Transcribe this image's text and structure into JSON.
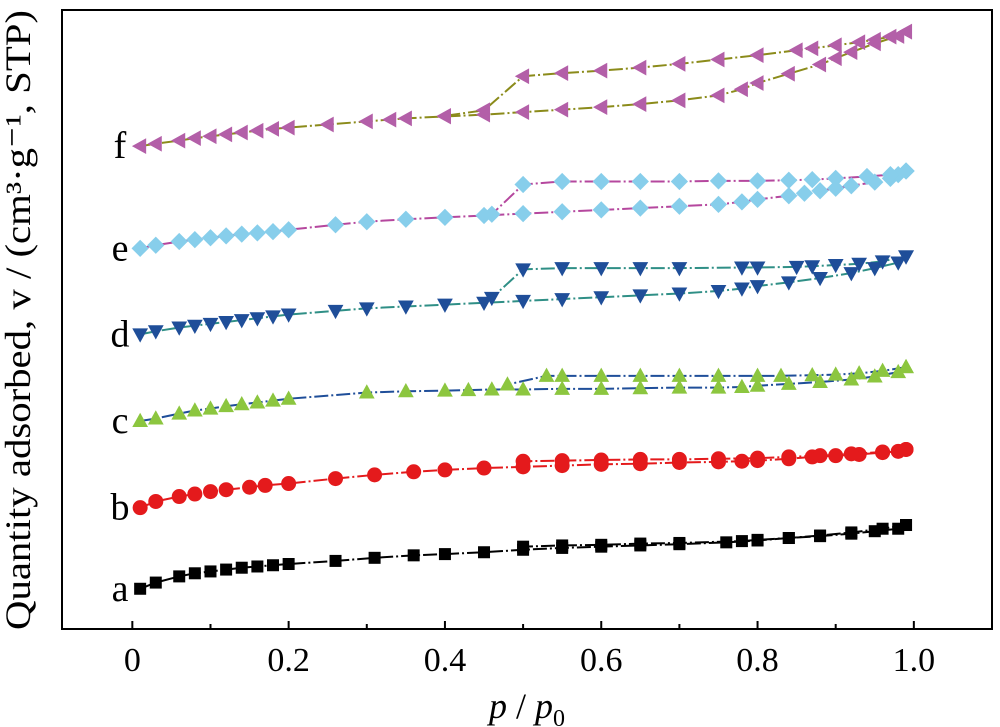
{
  "chart_data": {
    "type": "scatter",
    "xlabel": "p / p0",
    "ylabel": "Quantity adsorbed, v / (cm³·g⁻¹, STP)",
    "xlim": [
      -0.09,
      1.1
    ],
    "ylim": [
      0,
      100
    ],
    "xticks": [
      0,
      0.2,
      0.4,
      0.6,
      0.8,
      1.0
    ],
    "xtick_labels": [
      "0",
      "0.2",
      "0.4",
      "0.6",
      "0.8",
      "1.0"
    ],
    "y_tick_labels_shown": false,
    "grid": false,
    "series": [
      {
        "name": "a",
        "marker": "square",
        "color": "#000000",
        "line_color": "#000000",
        "adsorption": {
          "x": [
            0.01,
            0.03,
            0.06,
            0.08,
            0.1,
            0.12,
            0.14,
            0.16,
            0.18,
            0.2,
            0.26,
            0.31,
            0.36,
            0.4,
            0.45,
            0.5,
            0.55,
            0.6,
            0.65,
            0.7,
            0.76,
            0.8,
            0.84,
            0.88,
            0.92,
            0.95,
            0.98,
            0.99
          ],
          "y": [
            6.5,
            7.5,
            8.5,
            9.0,
            9.3,
            9.6,
            9.9,
            10.1,
            10.3,
            10.5,
            11.0,
            11.5,
            11.9,
            12.1,
            12.4,
            12.8,
            13.1,
            13.3,
            13.5,
            13.7,
            14.0,
            14.3,
            14.7,
            15.0,
            15.4,
            15.8,
            16.2,
            16.8
          ]
        },
        "desorption": {
          "x": [
            0.99,
            0.96,
            0.92,
            0.88,
            0.84,
            0.8,
            0.78,
            0.7,
            0.65,
            0.6,
            0.55,
            0.5
          ],
          "y": [
            16.8,
            16.2,
            15.6,
            15.1,
            14.7,
            14.4,
            14.2,
            13.9,
            13.8,
            13.6,
            13.5,
            13.3
          ]
        }
      },
      {
        "name": "b",
        "marker": "circle",
        "color": "#e41a1c",
        "line_color": "#e41a1c",
        "adsorption": {
          "x": [
            0.01,
            0.03,
            0.06,
            0.08,
            0.1,
            0.12,
            0.15,
            0.17,
            0.2,
            0.26,
            0.31,
            0.36,
            0.4,
            0.45,
            0.5,
            0.55,
            0.6,
            0.65,
            0.7,
            0.75,
            0.78,
            0.8,
            0.84,
            0.87,
            0.9,
            0.93,
            0.96,
            0.98,
            0.99
          ],
          "y": [
            19.6,
            20.6,
            21.4,
            21.8,
            22.2,
            22.5,
            22.9,
            23.2,
            23.5,
            24.3,
            24.9,
            25.4,
            25.7,
            26.0,
            26.2,
            26.4,
            26.6,
            26.7,
            26.9,
            27.0,
            27.1,
            27.2,
            27.5,
            27.8,
            28.0,
            28.2,
            28.5,
            28.7,
            29.0
          ]
        },
        "desorption": {
          "x": [
            0.99,
            0.96,
            0.92,
            0.88,
            0.84,
            0.8,
            0.75,
            0.7,
            0.65,
            0.6,
            0.55,
            0.5
          ],
          "y": [
            29.0,
            28.6,
            28.3,
            28.0,
            27.8,
            27.6,
            27.5,
            27.4,
            27.4,
            27.3,
            27.2,
            27.1
          ]
        }
      },
      {
        "name": "c",
        "marker": "triangle-up",
        "color": "#8cc63f",
        "line_color": "#1f4e99",
        "adsorption": {
          "x": [
            0.01,
            0.03,
            0.06,
            0.08,
            0.1,
            0.12,
            0.14,
            0.16,
            0.18,
            0.2,
            0.3,
            0.35,
            0.4,
            0.43,
            0.46,
            0.5,
            0.55,
            0.6,
            0.65,
            0.7,
            0.75,
            0.78,
            0.8,
            0.84,
            0.88,
            0.92,
            0.95,
            0.98,
            0.99
          ],
          "y": [
            33.6,
            34.0,
            34.8,
            35.3,
            35.6,
            36.0,
            36.3,
            36.6,
            36.9,
            37.2,
            38.2,
            38.4,
            38.5,
            38.6,
            38.7,
            38.7,
            38.8,
            38.8,
            38.9,
            39.0,
            39.0,
            39.1,
            39.3,
            39.6,
            39.9,
            40.3,
            40.8,
            41.5,
            42.3
          ]
        },
        "desorption": {
          "x": [
            0.99,
            0.96,
            0.93,
            0.9,
            0.87,
            0.83,
            0.8,
            0.75,
            0.7,
            0.65,
            0.6,
            0.55,
            0.53,
            0.48
          ],
          "y": [
            42.3,
            41.7,
            41.3,
            41.1,
            41.0,
            40.9,
            40.9,
            40.9,
            40.9,
            40.9,
            40.9,
            40.9,
            40.9,
            39.5
          ]
        }
      },
      {
        "name": "d",
        "marker": "triangle-down",
        "color": "#1f4e99",
        "line_color": "#2f8f86",
        "adsorption": {
          "x": [
            0.01,
            0.03,
            0.06,
            0.08,
            0.1,
            0.12,
            0.14,
            0.16,
            0.18,
            0.2,
            0.26,
            0.3,
            0.35,
            0.4,
            0.45,
            0.5,
            0.55,
            0.6,
            0.65,
            0.7,
            0.75,
            0.78,
            0.8,
            0.84,
            0.88,
            0.92,
            0.95,
            0.98,
            0.99
          ],
          "y": [
            47.6,
            48.1,
            48.7,
            49.0,
            49.3,
            49.6,
            49.9,
            50.2,
            50.5,
            50.8,
            51.4,
            51.8,
            52.1,
            52.4,
            52.7,
            53.0,
            53.3,
            53.6,
            53.9,
            54.2,
            54.6,
            55.0,
            55.4,
            56.0,
            56.7,
            57.5,
            58.3,
            59.2,
            60.2
          ]
        },
        "desorption": {
          "x": [
            0.99,
            0.96,
            0.93,
            0.9,
            0.87,
            0.85,
            0.8,
            0.78,
            0.7,
            0.65,
            0.6,
            0.55,
            0.5,
            0.46
          ],
          "y": [
            60.2,
            59.4,
            59.0,
            58.8,
            58.6,
            58.5,
            58.4,
            58.4,
            58.3,
            58.3,
            58.3,
            58.3,
            58.1,
            53.5
          ]
        }
      },
      {
        "name": "e",
        "marker": "diamond",
        "color": "#87ceeb",
        "line_color": "#b5479e",
        "adsorption": {
          "x": [
            0.01,
            0.03,
            0.06,
            0.08,
            0.1,
            0.12,
            0.14,
            0.16,
            0.18,
            0.2,
            0.26,
            0.3,
            0.35,
            0.4,
            0.45,
            0.5,
            0.55,
            0.6,
            0.65,
            0.7,
            0.75,
            0.78,
            0.8,
            0.84,
            0.86,
            0.88,
            0.9,
            0.92,
            0.95,
            0.97,
            0.98,
            0.99
          ],
          "y": [
            61.5,
            62.0,
            62.6,
            62.9,
            63.2,
            63.5,
            63.8,
            64.0,
            64.2,
            64.5,
            65.3,
            65.8,
            66.2,
            66.5,
            66.8,
            67.1,
            67.4,
            67.7,
            68.0,
            68.3,
            68.6,
            69.0,
            69.4,
            70.0,
            70.4,
            70.8,
            71.2,
            71.6,
            72.2,
            72.8,
            73.4,
            74.0
          ]
        },
        "desorption": {
          "x": [
            0.99,
            0.97,
            0.94,
            0.9,
            0.87,
            0.84,
            0.8,
            0.75,
            0.7,
            0.65,
            0.6,
            0.55,
            0.5,
            0.46
          ],
          "y": [
            74.0,
            73.4,
            73.1,
            72.8,
            72.6,
            72.5,
            72.4,
            72.4,
            72.3,
            72.3,
            72.3,
            72.3,
            71.8,
            67.0
          ]
        }
      },
      {
        "name": "f",
        "marker": "triangle-left",
        "color": "#b35fa8",
        "line_color": "#8b8b1a",
        "adsorption": {
          "x": [
            0.01,
            0.03,
            0.06,
            0.08,
            0.1,
            0.12,
            0.14,
            0.16,
            0.18,
            0.2,
            0.25,
            0.3,
            0.33,
            0.35,
            0.4,
            0.45,
            0.5,
            0.55,
            0.6,
            0.65,
            0.7,
            0.75,
            0.78,
            0.8,
            0.84,
            0.88,
            0.9,
            0.92,
            0.95,
            0.98,
            0.99
          ],
          "y": [
            78.0,
            78.4,
            78.9,
            79.3,
            79.6,
            79.9,
            80.2,
            80.5,
            80.8,
            81.0,
            81.5,
            82.0,
            82.3,
            82.5,
            82.8,
            83.1,
            83.5,
            83.9,
            84.3,
            84.8,
            85.4,
            86.2,
            87.2,
            88.2,
            89.7,
            91.2,
            92.2,
            93.2,
            94.6,
            95.8,
            96.5
          ]
        },
        "desorption": {
          "x": [
            0.99,
            0.97,
            0.95,
            0.93,
            0.9,
            0.87,
            0.85,
            0.8,
            0.75,
            0.7,
            0.65,
            0.6,
            0.55,
            0.5,
            0.45,
            0.4
          ],
          "y": [
            96.5,
            95.7,
            95.2,
            94.8,
            94.3,
            93.8,
            93.5,
            92.7,
            92.0,
            91.3,
            90.7,
            90.2,
            89.8,
            89.3,
            83.8,
            82.9
          ]
        }
      }
    ],
    "curve_labels": [
      "a",
      "b",
      "c",
      "d",
      "e",
      "f"
    ]
  }
}
